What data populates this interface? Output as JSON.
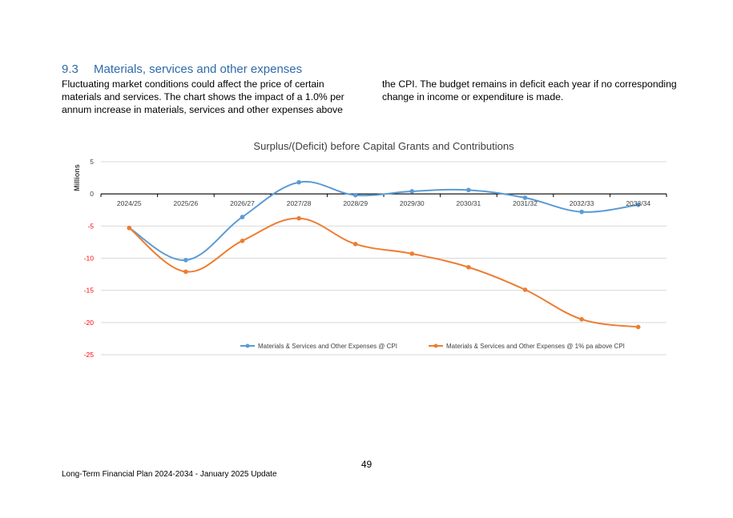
{
  "section": {
    "number": "9.3",
    "title": "Materials, services and other expenses"
  },
  "body": {
    "column_left": "Fluctuating market conditions could affect the price of certain materials and services. The chart shows the impact of a 1.0% per annum increase in materials, services and other expenses above",
    "column_right": "the CPI. The budget remains in deficit each year if no corresponding change in income or expenditure is made."
  },
  "chart_data": {
    "type": "line",
    "title": "Surplus/(Deficit) before Capital Grants and Contributions",
    "ylabel": "Millions",
    "xlabel": "",
    "ylim": [
      -25,
      5
    ],
    "yticks": [
      "5",
      "0",
      "-5",
      "-10",
      "-15",
      "-20",
      "-25"
    ],
    "categories": [
      "2024/25",
      "2025/26",
      "2026/27",
      "2027/28",
      "2028/29",
      "2029/30",
      "2030/31",
      "2031/32",
      "2032/33",
      "2033/34"
    ],
    "grid": true,
    "legend_position": "bottom",
    "series": [
      {
        "name": "Materials & Services and Other Expenses @ CPI",
        "color": "#5b9bd5",
        "values": [
          -5.3,
          -10.3,
          -3.6,
          1.8,
          -0.2,
          0.4,
          0.6,
          -0.6,
          -2.8,
          -1.7
        ]
      },
      {
        "name": "Materials & Services and Other Expenses @ 1% pa above CPI",
        "color": "#ed7d31",
        "values": [
          -5.3,
          -12.1,
          -7.3,
          -3.8,
          -7.8,
          -9.3,
          -11.4,
          -14.9,
          -19.5,
          -20.7
        ]
      }
    ],
    "colors": {
      "gridline": "#d9d9d9",
      "axis": "#000000",
      "negative_tick": "#ff0000",
      "text": "#404040"
    }
  },
  "page": {
    "number": "49",
    "footer": "Long-Term Financial Plan 2024-2034 - January 2025 Update"
  }
}
